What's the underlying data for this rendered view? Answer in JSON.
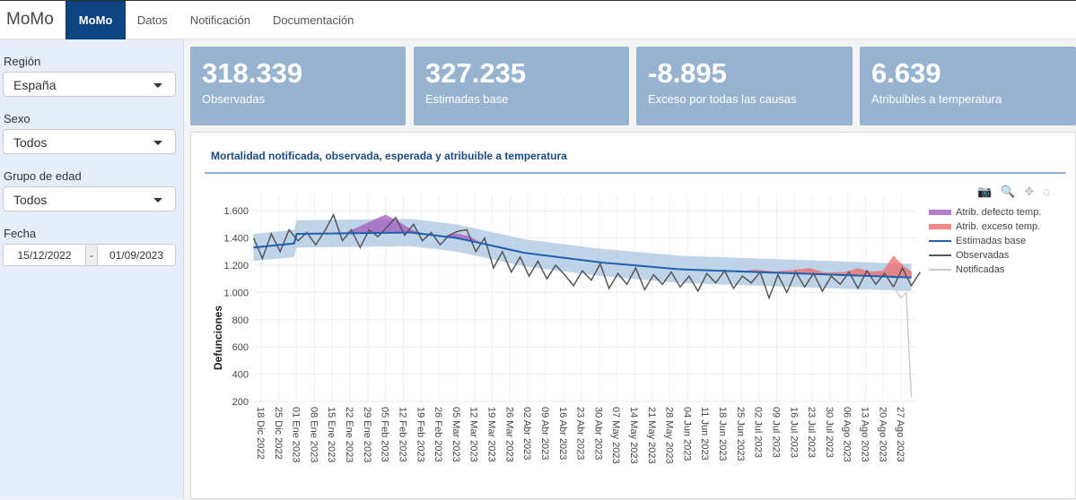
{
  "nav": {
    "brand": "MoMo",
    "items": [
      "MoMo",
      "Datos",
      "Notificación",
      "Documentación"
    ]
  },
  "sidebar": {
    "region_label": "Región",
    "region_value": "España",
    "sexo_label": "Sexo",
    "sexo_value": "Todos",
    "edad_label": "Grupo de edad",
    "edad_value": "Todos",
    "fecha_label": "Fecha",
    "fecha_from": "15/12/2022",
    "fecha_sep": "-",
    "fecha_to": "01/09/2023"
  },
  "cards": [
    {
      "value": "318.339",
      "label": "Observadas"
    },
    {
      "value": "327.235",
      "label": "Estimadas base"
    },
    {
      "value": "-8.895",
      "label": "Exceso por todas las causas"
    },
    {
      "value": "6.639",
      "label": "Atribuibles a temperatura"
    }
  ],
  "panel": {
    "title": "Mortalidad notificada, observada, esperada y atribuible a temperatura"
  },
  "modebar": {
    "icons": [
      "camera-icon",
      "zoom-icon",
      "pan-icon",
      "home-icon"
    ]
  },
  "chart_data": {
    "type": "line",
    "title": "Mortalidad notificada, observada, esperada y atribuible a temperatura",
    "ylabel": "Defunciones",
    "xlabel": "",
    "ylim": [
      200,
      1700
    ],
    "xlim": [
      "2022-12-15",
      "2023-08-31"
    ],
    "yticks": [
      200,
      400,
      600,
      800,
      1000,
      1200,
      1400,
      1600
    ],
    "ytick_labels": [
      "200",
      "400",
      "600",
      "800",
      "1.000",
      "1.200",
      "1.400",
      "1.600"
    ],
    "xtick_labels": [
      "18 Dic 2022",
      "25 Dic 2022",
      "01 Ene 2023",
      "08 Ene 2023",
      "15 Ene 2023",
      "22 Ene 2023",
      "29 Ene 2023",
      "05 Feb 2023",
      "12 Feb 2023",
      "19 Feb 2023",
      "26 Feb 2023",
      "05 Mar 2023",
      "12 Mar 2023",
      "19 Mar 2023",
      "26 Mar 2023",
      "02 Abr 2023",
      "09 Abr 2023",
      "16 Abr 2023",
      "23 Abr 2023",
      "30 Abr 2023",
      "07 May 2023",
      "14 May 2023",
      "21 May 2023",
      "28 May 2023",
      "04 Jun 2023",
      "11 Jun 2023",
      "18 Jun 2023",
      "25 Jun 2023",
      "02 Jul 2023",
      "09 Jul 2023",
      "16 Jul 2023",
      "23 Jul 2023",
      "30 Jul 2023",
      "06 Ago 2023",
      "13 Ago 2023",
      "20 Ago 2023",
      "27 Ago 2023"
    ],
    "xtick_first": "2022-12-18",
    "xtick_step_days": 7,
    "legend": {
      "placement": "top-right",
      "entries": [
        "Atrib. defecto temp.",
        "Atrib. exceso temp.",
        "Estimadas base",
        "Observadas",
        "Notificadas"
      ]
    },
    "colors": {
      "cold": "#a55cc2",
      "heat": "#ef6a6a",
      "base": "#1f5fae",
      "band": "#a9c4e2",
      "observed": "#555555",
      "notified": "#cccccc"
    },
    "baseline": {
      "dates": [
        "2022-12-15",
        "2022-12-31",
        "2023-01-01",
        "2023-02-15",
        "2023-03-05",
        "2023-04-01",
        "2023-05-01",
        "2023-06-01",
        "2023-07-01",
        "2023-08-01",
        "2023-08-31"
      ],
      "values": [
        1330,
        1360,
        1430,
        1440,
        1400,
        1290,
        1220,
        1170,
        1150,
        1130,
        1110
      ],
      "band_half_width": 100
    },
    "observed": {
      "start": "2022-12-15",
      "step_days": 3.5,
      "values": [
        1400,
        1250,
        1430,
        1300,
        1460,
        1380,
        1440,
        1350,
        1450,
        1570,
        1380,
        1460,
        1330,
        1460,
        1410,
        1480,
        1550,
        1420,
        1500,
        1380,
        1440,
        1350,
        1420,
        1450,
        1460,
        1300,
        1400,
        1180,
        1300,
        1150,
        1260,
        1120,
        1230,
        1100,
        1200,
        1130,
        1050,
        1160,
        1090,
        1210,
        1030,
        1140,
        1060,
        1180,
        1020,
        1130,
        1060,
        1150,
        1040,
        1120,
        1010,
        1140,
        1070,
        1160,
        1030,
        1120,
        1070,
        1150,
        960,
        1130,
        1000,
        1150,
        1040,
        1140,
        1010,
        1120,
        1060,
        1150,
        1030,
        1160,
        1060,
        1140,
        1040,
        1180,
        1050,
        1150
      ]
    },
    "notified": {
      "dates": [
        "2023-08-24",
        "2023-08-27",
        "2023-08-29",
        "2023-08-31"
      ],
      "values": [
        1040,
        960,
        1000,
        230
      ]
    },
    "attrib_cold": {
      "dates": [
        "2023-01-20",
        "2023-01-25",
        "2023-02-01",
        "2023-02-05",
        "2023-02-10",
        "2023-02-15",
        "2023-02-20",
        "2023-02-28",
        "2023-03-05",
        "2023-03-10",
        "2023-03-15"
      ],
      "values": [
        0,
        40,
        100,
        130,
        80,
        20,
        0,
        0,
        30,
        30,
        0
      ]
    },
    "attrib_heat": {
      "dates": [
        "2023-06-25",
        "2023-07-01",
        "2023-07-08",
        "2023-07-15",
        "2023-07-22",
        "2023-07-28",
        "2023-08-05",
        "2023-08-10",
        "2023-08-15",
        "2023-08-20",
        "2023-08-24",
        "2023-08-28",
        "2023-08-31"
      ],
      "values": [
        0,
        15,
        5,
        20,
        40,
        10,
        20,
        50,
        30,
        40,
        150,
        80,
        40
      ]
    }
  }
}
